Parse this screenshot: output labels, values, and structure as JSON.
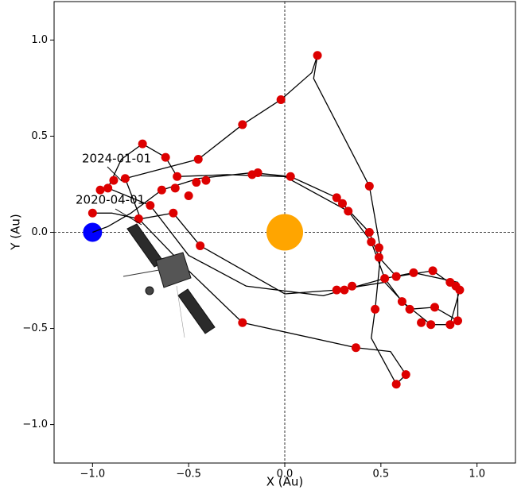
{
  "chart_data": {
    "type": "scatter",
    "xlabel": "X (Au)",
    "ylabel": "Y (Au)",
    "xlim": [
      -1.2,
      1.2
    ],
    "ylim": [
      -1.2,
      1.2
    ],
    "xticks": [
      {
        "value": -1.0,
        "label": "−1.0"
      },
      {
        "value": -0.5,
        "label": "−0.5"
      },
      {
        "value": 0.0,
        "label": "0.0"
      },
      {
        "value": 0.5,
        "label": "0.5"
      },
      {
        "value": 1.0,
        "label": "1.0"
      }
    ],
    "yticks": [
      {
        "value": -1.0,
        "label": "−1.0"
      },
      {
        "value": -0.5,
        "label": "−0.5"
      },
      {
        "value": 0.0,
        "label": "0.0"
      },
      {
        "value": 0.5,
        "label": "0.5"
      },
      {
        "value": 1.0,
        "label": "1.0"
      }
    ],
    "zero_lines": true,
    "annotations": [
      "2024-01-01",
      "2020-04-01"
    ],
    "series": [
      {
        "type": "line",
        "color": "#000000",
        "x": [
          -1.0,
          -0.92,
          -0.8,
          -0.64,
          -0.45,
          -0.17,
          0.03,
          0.27,
          0.44,
          0.49,
          0.58,
          0.77,
          0.91,
          0.86,
          0.76,
          0.61,
          0.52,
          0.2,
          -0.2,
          -0.5,
          -0.7,
          -0.92,
          -0.85,
          -0.74,
          -0.62,
          -0.56,
          -0.3,
          0.0,
          0.33,
          0.45,
          0.52,
          0.67,
          0.9,
          0.9,
          0.78,
          0.65,
          0.52,
          0.27,
          0.0,
          -0.44,
          -0.58,
          -0.75,
          -0.83,
          -0.45,
          -0.22,
          -0.02,
          0.14,
          0.17,
          0.15,
          0.44,
          0.5,
          0.47,
          0.45,
          0.58,
          0.63,
          0.55,
          0.37,
          -0.22,
          -0.5,
          -0.76,
          -0.9,
          -1.0
        ],
        "y": [
          0.0,
          0.03,
          0.1,
          0.22,
          0.28,
          0.31,
          0.29,
          0.18,
          0.0,
          -0.13,
          -0.23,
          -0.2,
          -0.3,
          -0.48,
          -0.48,
          -0.36,
          -0.24,
          -0.33,
          -0.28,
          -0.12,
          0.14,
          0.23,
          0.38,
          0.46,
          0.39,
          0.29,
          0.3,
          0.29,
          0.11,
          -0.05,
          -0.24,
          -0.21,
          -0.26,
          -0.46,
          -0.39,
          -0.4,
          -0.26,
          -0.3,
          -0.32,
          -0.07,
          0.1,
          0.07,
          0.28,
          0.38,
          0.56,
          0.69,
          0.83,
          0.92,
          0.8,
          0.24,
          -0.1,
          -0.4,
          -0.55,
          -0.79,
          -0.74,
          -0.62,
          -0.6,
          -0.47,
          -0.2,
          0.07,
          0.1,
          0.1
        ]
      },
      {
        "type": "scatter",
        "color": "#dd0000",
        "x": [
          -1.0,
          -0.92,
          -0.96,
          -0.89,
          -0.83,
          -0.74,
          -0.62,
          -0.45,
          -0.56,
          -0.57,
          -0.64,
          -0.7,
          -0.76,
          -0.5,
          -0.58,
          -0.46,
          -0.41,
          -0.22,
          -0.02,
          0.17,
          -0.17,
          -0.14,
          0.03,
          0.27,
          0.3,
          0.33,
          0.44,
          0.44,
          0.45,
          0.49,
          0.49,
          0.52,
          0.47,
          0.58,
          0.61,
          0.65,
          0.67,
          0.71,
          0.76,
          0.77,
          0.78,
          0.86,
          0.89,
          0.91,
          0.9,
          0.86,
          0.63,
          0.58,
          0.37,
          -0.22,
          -0.44,
          0.27,
          0.31,
          0.35
        ],
        "y": [
          0.1,
          0.23,
          0.22,
          0.27,
          0.28,
          0.46,
          0.39,
          0.38,
          0.29,
          0.23,
          0.22,
          0.14,
          0.07,
          0.19,
          0.1,
          0.26,
          0.27,
          0.56,
          0.69,
          0.92,
          0.3,
          0.31,
          0.29,
          0.18,
          0.15,
          0.11,
          0.24,
          0.0,
          -0.05,
          -0.08,
          -0.13,
          -0.24,
          -0.4,
          -0.23,
          -0.36,
          -0.4,
          -0.21,
          -0.47,
          -0.48,
          -0.2,
          -0.39,
          -0.26,
          -0.28,
          -0.3,
          -0.46,
          -0.48,
          -0.74,
          -0.79,
          -0.6,
          -0.47,
          -0.07,
          -0.3,
          -0.3,
          -0.28
        ]
      }
    ],
    "bodies": [
      {
        "x": 0.0,
        "y": 0.0,
        "color": "#ffa500"
      },
      {
        "x": -1.0,
        "y": 0.0,
        "color": "#0000ff"
      }
    ]
  }
}
